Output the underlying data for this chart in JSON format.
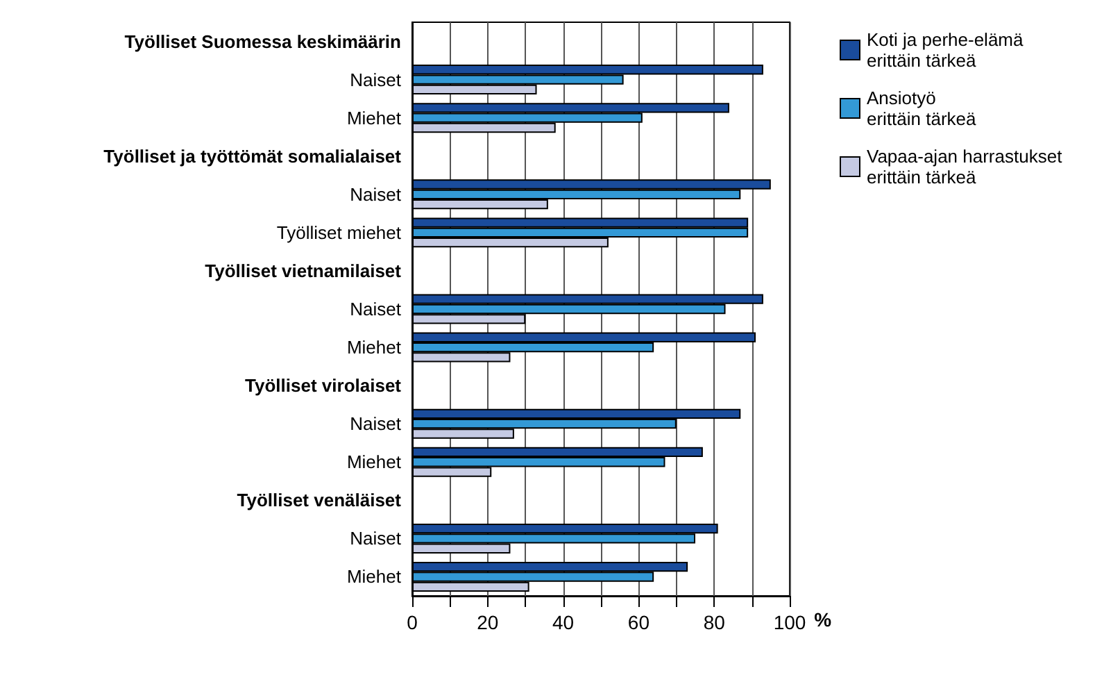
{
  "chart_data": {
    "type": "bar",
    "orientation": "horizontal",
    "xlabel": "%",
    "categories": [
      "Työlliset Suomessa keskimäärin",
      "Naiset",
      "Miehet",
      "Työlliset ja työttömät somalialaiset",
      "Naiset",
      "Työlliset miehet",
      "Työlliset vietnamilaiset",
      "Naiset",
      "Miehet",
      "Työlliset virolaiset",
      "Naiset",
      "Miehet",
      "Työlliset venäläiset",
      "Naiset",
      "Miehet"
    ],
    "series": [
      {
        "name": "Koti ja perhe-elämä\nerittäin tärkeä",
        "color": "#1a4c9c",
        "values": [
          null,
          93,
          84,
          null,
          95,
          89,
          null,
          93,
          91,
          null,
          87,
          77,
          null,
          81,
          73
        ]
      },
      {
        "name": "Ansiotyö\nerittäin tärkeä",
        "color": "#3399d6",
        "values": [
          null,
          56,
          61,
          null,
          87,
          89,
          null,
          83,
          64,
          null,
          70,
          67,
          null,
          75,
          64
        ]
      },
      {
        "name": "Vapaa-ajan harrastukset\nerittäin tärkeä",
        "color": "#c5cae3",
        "values": [
          null,
          33,
          38,
          null,
          36,
          52,
          null,
          30,
          26,
          null,
          27,
          21,
          null,
          26,
          31
        ]
      }
    ],
    "xlim": [
      0,
      100
    ],
    "xticks": [
      0,
      {
        "value": 10,
        "label": null
      },
      20,
      {
        "value": 30,
        "label": null
      },
      40,
      {
        "value": 50,
        "label": null
      },
      60,
      {
        "value": 70,
        "label": null
      },
      80,
      {
        "value": 90,
        "label": null
      },
      100
    ],
    "grid": "x",
    "legend": "top right"
  }
}
